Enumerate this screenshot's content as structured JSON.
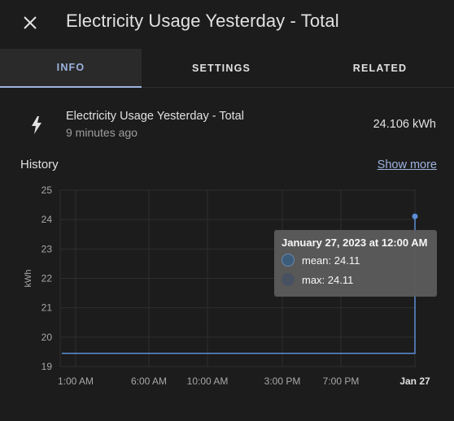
{
  "dialog": {
    "title": "Electricity Usage Yesterday - Total",
    "close_icon": "close-icon"
  },
  "tabs": [
    {
      "label": "INFO",
      "active": true
    },
    {
      "label": "SETTINGS",
      "active": false
    },
    {
      "label": "RELATED",
      "active": false
    }
  ],
  "entity": {
    "icon": "lightning-bolt-icon",
    "name": "Electricity Usage Yesterday - Total",
    "last_changed": "9 minutes ago",
    "state": "24.106 kWh"
  },
  "history": {
    "title": "History",
    "show_more": "Show more"
  },
  "tooltip": {
    "title": "January 27, 2023 at 12:00 AM",
    "rows": [
      {
        "label": "mean: 24.11",
        "color": "#3e5f80"
      },
      {
        "label": "max: 24.11",
        "color": "#4a5465"
      }
    ]
  },
  "colors": {
    "accent": "#9db3e0",
    "line": "#5b8ed6",
    "background": "#1c1c1c"
  },
  "chart_data": {
    "type": "line",
    "ylabel": "kWh",
    "ylim": [
      19,
      25
    ],
    "yticks": [
      "25",
      "24",
      "23",
      "22",
      "21",
      "20",
      "19"
    ],
    "xticks": [
      "1:00 AM",
      "6:00 AM",
      "10:00 AM",
      "3:00 PM",
      "7:00 PM",
      "Jan 27"
    ],
    "grid": true,
    "series": [
      {
        "x": [
          "Jan 26 12:00 AM",
          "Jan 26 11:59 PM",
          "Jan 27 12:00 AM"
        ],
        "values": [
          19.45,
          19.45,
          24.11
        ]
      }
    ]
  }
}
